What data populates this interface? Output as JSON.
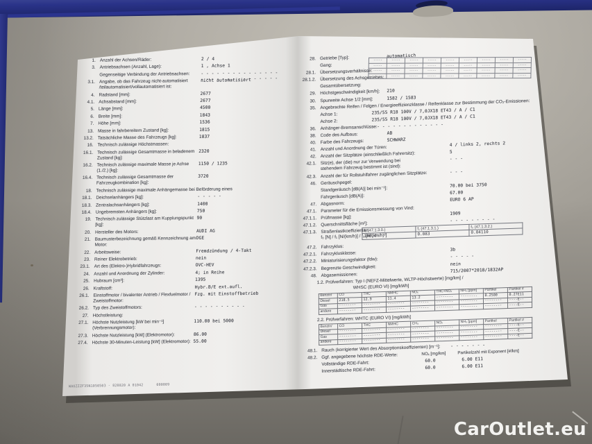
{
  "watermark": "CarOutlet.eu",
  "footer_code": "WAUZZZF35N1050503 - 828820 A 01042      000009",
  "colors": {
    "frame_blue": "#2a3389",
    "desk_gray": "#a19d95",
    "paper": "#f0efed",
    "ink": "#44464d"
  },
  "left_page": {
    "rows": [
      {
        "n": "1.",
        "l": "Anzahl der Achsen/Räder:",
        "v": "2  / 4"
      },
      {
        "n": "3.",
        "l": "Antriebsachsen (Anzahl, Lage):",
        "v": "1 , Achse 1"
      },
      {
        "n": "",
        "l": "Gegenseitige Verbindung der Antriebsachsen:",
        "v": "- - - - - - - - - - - - - - -\n- - - - - - - - - - - - - - -"
      },
      {
        "n": "3.1.",
        "l": "Angabe, ob das Fahrzeug nicht-automatisiert /teilautomatisiert/vollautomatisiert ist:",
        "v": "nicht automatisiert"
      },
      {
        "n": "4.",
        "l": "Radstand [mm]:",
        "v": "2677"
      },
      {
        "n": "4.1.",
        "l": "Achsabstand [mm]:",
        "v": "2677"
      },
      {
        "n": "5.",
        "l": "Länge [mm]:",
        "v": "4500"
      },
      {
        "n": "6.",
        "l": "Breite [mm]:",
        "v": "1843"
      },
      {
        "n": "7.",
        "l": "Höhe [mm]:",
        "v": "1536"
      },
      {
        "n": "13.",
        "l": "Masse in fahrbereitem Zustand [kg]:",
        "v": "1815"
      },
      {
        "n": "13.2.",
        "l": "Tatsächliche Masse des Fahrzeugs [kg]:",
        "v": "1837"
      },
      {
        "n": "16.",
        "l": "Technisch zulässige Höchstmassen:"
      },
      {
        "n": "16.1.",
        "l": "Technisch zulässige Gesamtmasse in beladenem Zustand [kg]:",
        "v": "2320"
      },
      {
        "n": "16.2.",
        "l": "Technisch zulässige maximale Masse je Achse (1./2.) [kg]:",
        "v": "1150  / 1235"
      },
      {
        "n": "16.4.",
        "l": "Technisch zulässige Gesamtmasse der Fahrzeugkombination [kg]:",
        "v": "3720"
      },
      {
        "n": "18.",
        "l": "Technisch zulässige maximale Anhängemasse bei Beförderung eines"
      },
      {
        "n": "18.1.",
        "l": "Deichselanhängers [kg]:",
        "v": "- - - - -"
      },
      {
        "n": "18.3.",
        "l": "Zentralachsanhängers [kg]:",
        "v": "1400"
      },
      {
        "n": "18.4.",
        "l": "Ungebremsten Anhängers [kg]:",
        "v": "750"
      },
      {
        "n": "19.",
        "l": "Technisch zulässige Stützlast am Kupplungspunkt [kg]:",
        "v": "90"
      },
      {
        "n": "20.",
        "l": "Hersteller des Motors:",
        "v": "AUDI AG"
      },
      {
        "n": "21.",
        "l": "Baumusterbezeichnung gemäß Kennzeichnung am Motor:",
        "v": "DGE"
      },
      {
        "n": "22.",
        "l": "Arbeitsweise:",
        "v": "Fremdzündung / 4-Takt"
      },
      {
        "n": "23.",
        "l": "Reiner Elektrobetrieb:",
        "v": "nein"
      },
      {
        "n": "23.1.",
        "l": "Art des (Elektro-)Hybridfahrzeugs:",
        "v": "OVC-HEV"
      },
      {
        "n": "24.",
        "l": "Anzahl und Anordnung der Zylinder:",
        "v": "4; in Reihe"
      },
      {
        "n": "25.",
        "l": "Hubraum [cm³]:",
        "v": "1395"
      },
      {
        "n": "26.",
        "l": "Kraftstoff:",
        "v": "Hybr.B/E ext.aufl."
      },
      {
        "n": "26.1.",
        "l": "Einstoffmotor / bivalenter Antrieb / Flexfuelmotor / Zweistoffmotor:",
        "v": "Fzg. mit Einstoffbetrieb"
      },
      {
        "n": "26.2.",
        "l": "Typ des Zweistoffmotors:",
        "v": "- - - - - - - - - -"
      },
      {
        "n": "27.",
        "l": "Höchstleistung:"
      },
      {
        "n": "27.1.",
        "l": "Höchste Nutzleistung [kW bei min⁻¹] (Verbrennungsmotor):",
        "v": "110.00  bei 5000"
      },
      {
        "n": "27.3.",
        "l": "Höchste Nutzleistung [kW] (Elektromotor):",
        "v": "86.00"
      },
      {
        "n": "27.4.",
        "l": "Höchste 30-Minuten-Leistung [kW] (Elektromotor):",
        "v": "55.00",
        "lw": 1
      }
    ]
  },
  "right_page": {
    "gear_table": {
      "rows": 4,
      "cols": 9,
      "cell": "-----"
    },
    "coeff_table": {
      "headers": [
        "f₀ (47.1.3.0.)",
        "f₁ (47.1.3.1.)",
        "f₂ (47.1.3.2.)"
      ],
      "values": [
        "140.4",
        "0.083",
        "0.04110"
      ]
    },
    "emissions_1": {
      "title": [
        "1.2. Prüfverfahren:  Typ I (NEFZ-Mittelwerte, WLTP-Höchstwerte) [mg/km] /",
        "WHSC (EURO VI) [mg/kWh]"
      ],
      "corner": "Benzin/",
      "headers": [
        "CO",
        "THC",
        "NMHC",
        "NOₓ",
        "THC+NOₓ",
        "NH₃ [ppm]",
        "Partikel",
        "Partikel #"
      ],
      "rows": [
        [
          "Diesel",
          "218.5",
          "12.9",
          "11.4",
          "13.2",
          "--------",
          "--------",
          "0.2500",
          "0.27E11"
        ],
        [
          "Gas",
          "--------",
          "--------",
          "--------",
          "--------",
          "--------",
          "--------",
          "--------",
          "----E--"
        ],
        [
          "andere",
          "--------",
          "--------",
          "--------",
          "--------",
          "--------",
          "--------",
          "--------",
          "----E--"
        ]
      ]
    },
    "emissions_2": {
      "title": [
        "2.2. Prüfverfahren: WHTC (EURO VI) [mg/kWh]"
      ],
      "corner": "Benzin/",
      "headers": [
        "CO",
        "THC",
        "NMHC",
        "CH₄",
        "NOₓ",
        "NH₃ [ppm]",
        "Partikel",
        "Partikel #"
      ],
      "rows": [
        [
          "Diesel",
          "--------",
          "--------",
          "--------",
          "--------",
          "--------",
          "--------",
          "--------",
          "----E--"
        ],
        [
          "Gas",
          "--------",
          "--------",
          "--------",
          "--------",
          "--------",
          "--------",
          "--------",
          "----E--"
        ],
        [
          "andere",
          "--------",
          "--------",
          "--------",
          "--------",
          "--------",
          "--------",
          "--------",
          "----E--"
        ]
      ]
    },
    "rde": {
      "n": "48.2.",
      "label": "Ggf. angegebene höchste RDE-Werte:",
      "col_a": "NOₓ [mg/km]",
      "col_b": "Partikelzahl mit Exponent [#/km]",
      "rows": [
        {
          "label": "Vollständige RDE-Fahrt:",
          "a": "60.0",
          "b": "6.00 E11"
        },
        {
          "label": "Innerstädtische RDE-Fahrt:",
          "a": "60.0",
          "b": "6.00 E11"
        }
      ]
    },
    "blocks": [
      {
        "n": "28.",
        "l": "Getriebe [Typ]:",
        "v": "automatisch",
        "col": 1
      },
      {
        "n": "",
        "l": "Gang:"
      },
      {
        "n": "28.1.",
        "l": "Übersetzungsverhältnisse:"
      },
      {
        "n": "28.1.2.",
        "l": "Übersetzung des Achsgetriebes:"
      },
      {
        "n": "",
        "l": "Gesamtübersetzung:"
      },
      {
        "n": "29.",
        "l": "Höchstgeschwindigkeit [km/h]:",
        "v": "210",
        "col": 1
      },
      {
        "n": "30.",
        "l": "Spurweite Achse 1/2 [mm]:",
        "v": "1582  /  1583",
        "col": 1
      },
      {
        "n": "35.",
        "l": "Angebrachte Reifen / Felgen / Energieeffizienzklasse / Reifenklasse zur Bestimmung der CO₂-Emissionen:"
      },
      {
        "n": "",
        "l": "Achse 1:",
        "v": "235/55 R18 100V       / 7,0JX18 ET43        / A    / C1",
        "col": 0
      },
      {
        "n": "",
        "l": "Achse 2:",
        "v": "235/55 R18 100V       / 7,0JX18 ET43        / A    / C1",
        "col": 0
      },
      {
        "n": "36.",
        "l": "Anhänger-Bremsanschlüsse:",
        "v": "- - - - - - - - - - - - - -",
        "col": 0
      },
      {
        "n": "38.",
        "l": "Code des Aufbaus:",
        "v": "AB",
        "col": 1
      },
      {
        "n": "40.",
        "l": "Farbe des Fahrzeugs:",
        "v": "SCHWARZ",
        "col": 1
      },
      {
        "n": "41.",
        "l": "Anzahl und Anordnung der Türen:",
        "v": "4    / links 2, rechts 2",
        "col": 2
      },
      {
        "n": "42.",
        "l": "Anzahl der Sitzplätze (einschließlich Fahrersitz):",
        "v": "5",
        "col": 2,
        "lw": 1
      },
      {
        "n": "42.1.",
        "l": "Sitz(e), der (die) nur zur Verwendung bei stehendem Fahrzeug bestimmt ist (sind):",
        "v": "- - -",
        "col": 2
      },
      {
        "n": "42.3.",
        "l": "Anzahl der für Rollstuhlfahrer zugänglichen Sitzplätze:",
        "v": "- - -",
        "col": 2,
        "lw": 1
      },
      {
        "n": "46.",
        "l": "Geräuschpegel:"
      },
      {
        "n": "",
        "l": "Standgeräusch [dB(A)] bei min⁻¹]:",
        "v": "70.00  bei 3750",
        "col": 2
      },
      {
        "n": "",
        "l": "Fahrgeräusch [dB(A)]:",
        "v": "67.00",
        "col": 2
      },
      {
        "n": "47.",
        "l": "Abgasnorm:",
        "v": "EURO 6 AP",
        "col": 2
      },
      {
        "n": "47.1.",
        "l": "Parameter für die Emissionsmessung von Vind:"
      },
      {
        "n": "47.1.1.",
        "l": "Prüfmasse [kg]:",
        "v": "1909",
        "col": 2
      },
      {
        "n": "47.1.2.",
        "l": "Querschnittsfläche [m²]:",
        "v": "- - - - - - - - -",
        "col": 2
      },
      {
        "t": "coeff",
        "n": "47.1.3.",
        "label_lines": [
          "Straßenlastkoeffizienten",
          "f₀ [N] / f₁ [N/(km/h)] / f₂ [N/(km/h)²]"
        ]
      },
      {
        "n": "47.2.",
        "l": "Fahrzyklus:"
      },
      {
        "n": "47.2.1.",
        "l": "Fahrzyklusklasse:",
        "v": "3b",
        "col": 2
      },
      {
        "n": "47.2.2.",
        "l": "Miniaturisierungsfaktor (fdw):",
        "v": "- - - - -",
        "col": 2
      },
      {
        "n": "47.2.3.",
        "l": "Begrenzte Geschwindigkeit:",
        "v": "nein",
        "col": 2
      },
      {
        "n": "48.",
        "l": "Abgasemissionen:",
        "v": "715/2007*2018/1832AP",
        "col": 2
      },
      {
        "t": "emis",
        "key": "emissions_1"
      },
      {
        "t": "emis",
        "key": "emissions_2"
      },
      {
        "n": "48.1.",
        "l": "Rauch (korrigierter Wert des Absorptionskoeffizienten) [m⁻¹]:",
        "v": "- - - - - - -",
        "col": 2,
        "lw": 1
      },
      {
        "t": "rde"
      }
    ]
  }
}
